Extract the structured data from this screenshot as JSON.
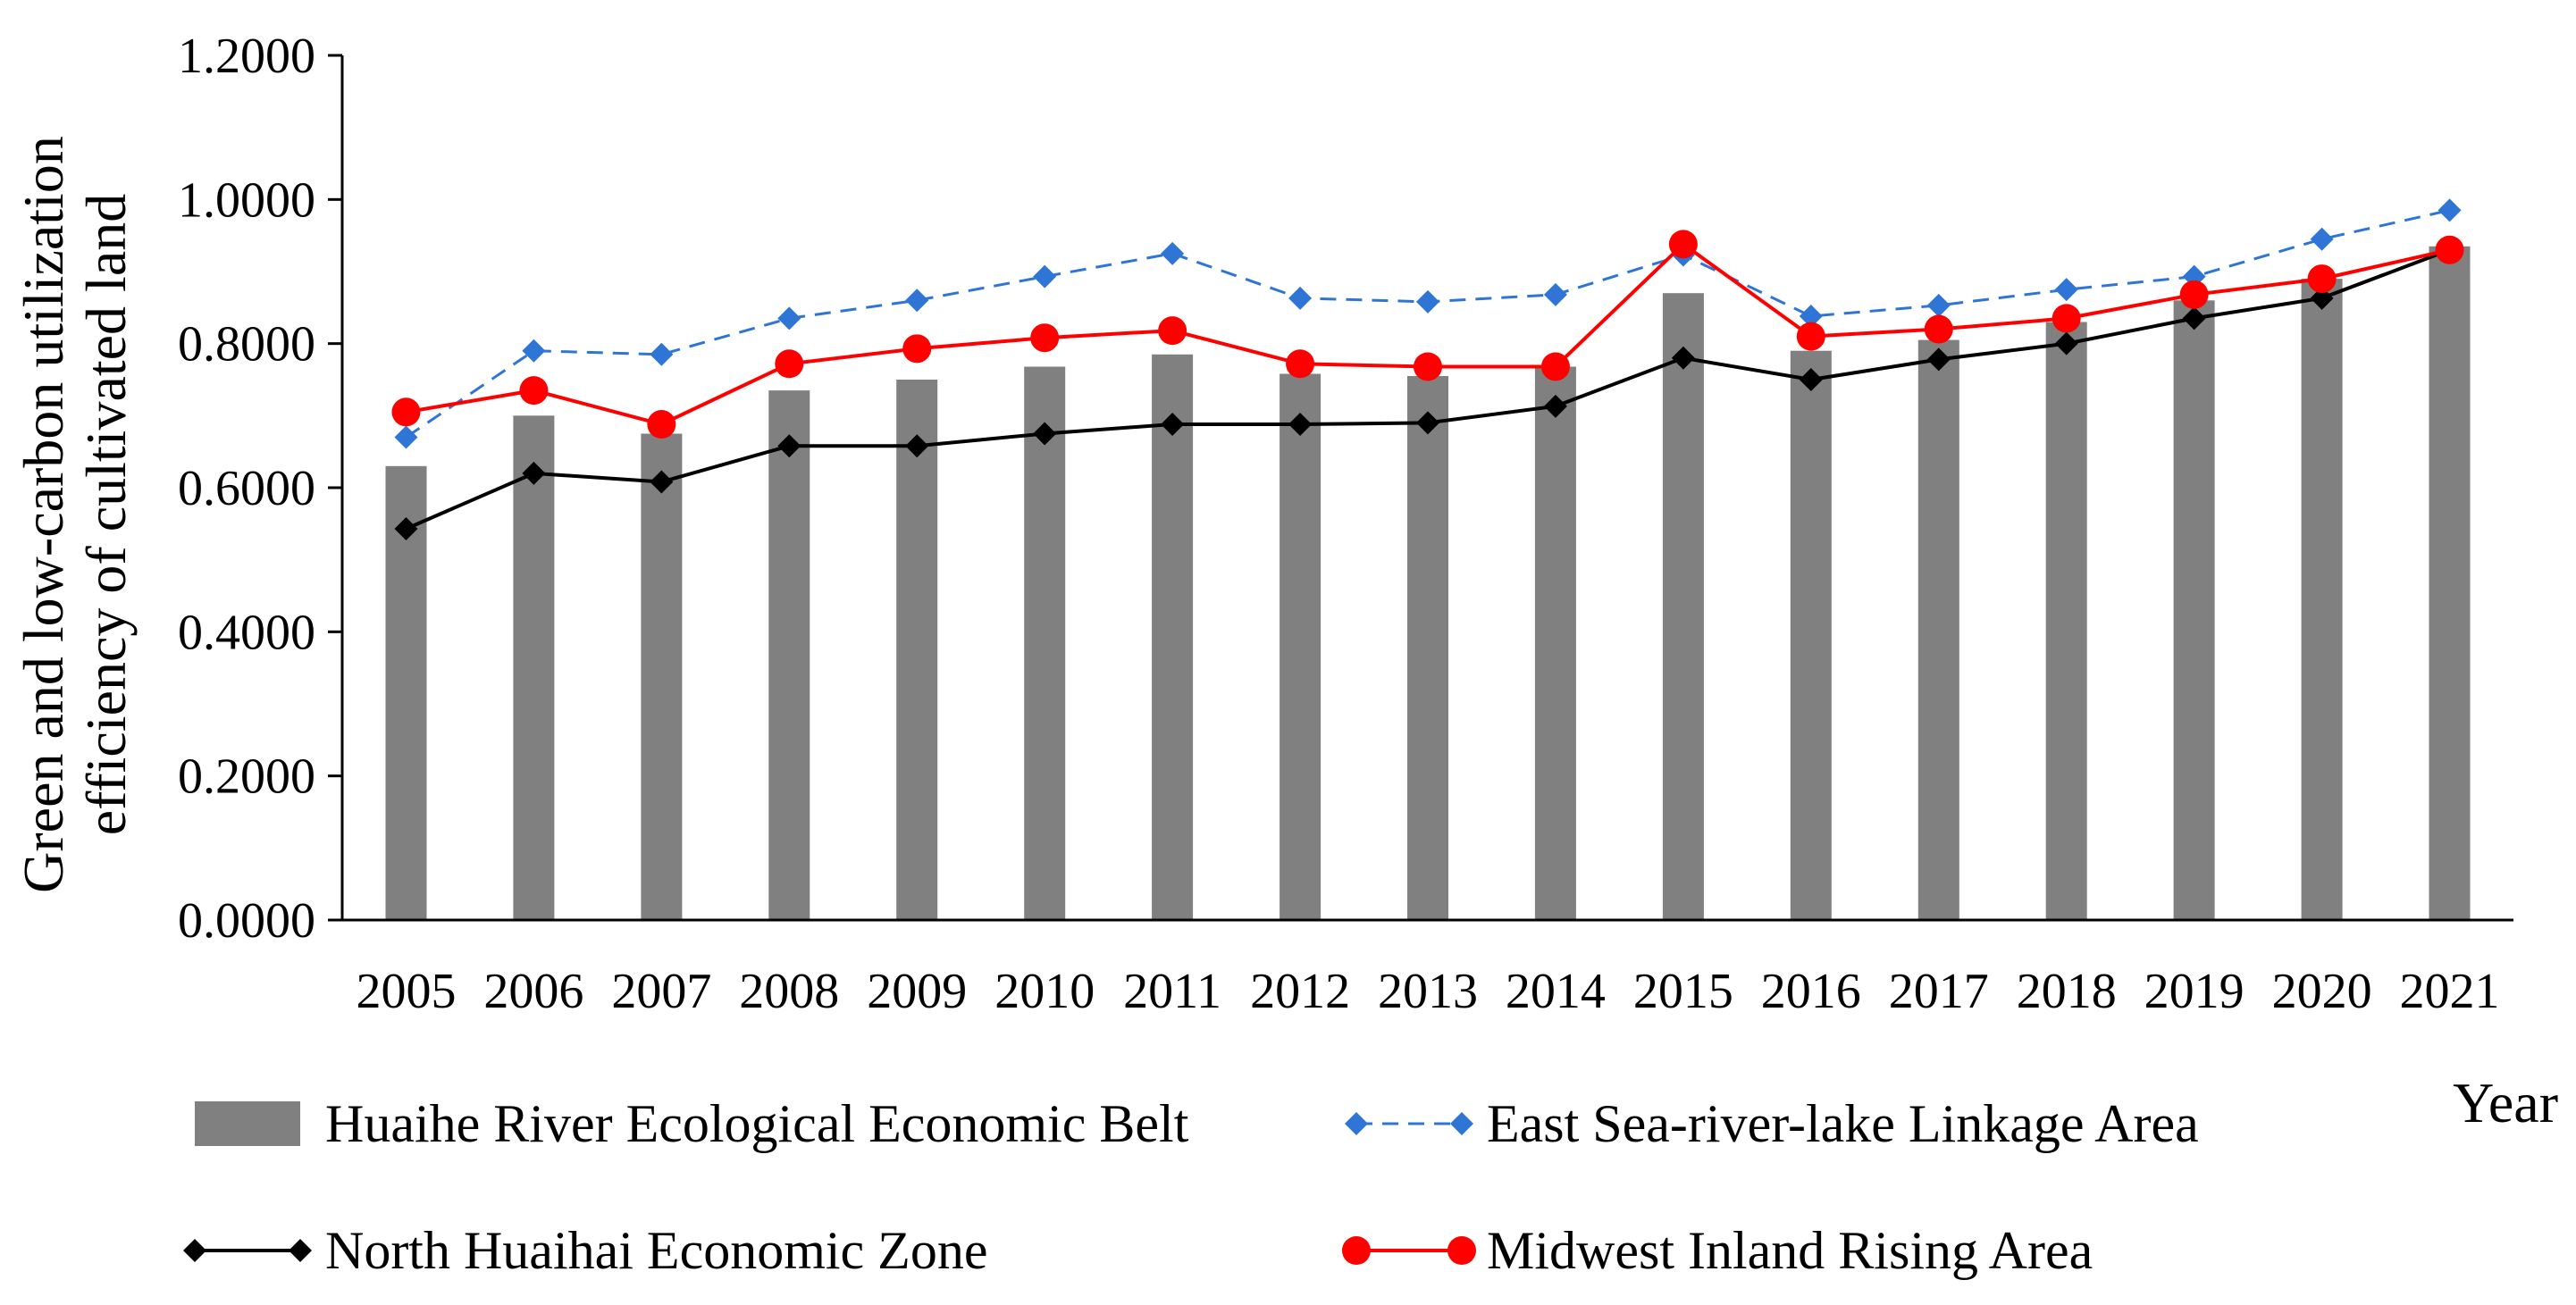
{
  "chart_data": {
    "type": "bar",
    "title": "",
    "xlabel": "Year",
    "ylabel_lines": [
      "Green and low-carbon utilization",
      "efficiency of cultivated land"
    ],
    "ylim": [
      0,
      1.2
    ],
    "yticks": [
      "0.0000",
      "0.2000",
      "0.4000",
      "0.6000",
      "0.8000",
      "1.0000",
      "1.2000"
    ],
    "ytick_values": [
      0,
      0.2,
      0.4,
      0.6,
      0.8,
      1.0,
      1.2
    ],
    "categories": [
      "2005",
      "2006",
      "2007",
      "2008",
      "2009",
      "2010",
      "2011",
      "2012",
      "2013",
      "2014",
      "2015",
      "2016",
      "2017",
      "2018",
      "2019",
      "2020",
      "2021"
    ],
    "series": [
      {
        "name": "Huaihe River Ecological Economic Belt",
        "type": "bar",
        "color": "#808080",
        "values": [
          0.63,
          0.7,
          0.675,
          0.735,
          0.75,
          0.768,
          0.785,
          0.758,
          0.755,
          0.768,
          0.87,
          0.79,
          0.805,
          0.83,
          0.86,
          0.89,
          0.935
        ]
      },
      {
        "name": "East Sea-river-lake Linkage Area",
        "type": "line",
        "style": "dashed",
        "marker": "diamond",
        "color": "#2E75D6",
        "values": [
          0.67,
          0.79,
          0.785,
          0.835,
          0.86,
          0.893,
          0.925,
          0.863,
          0.858,
          0.868,
          0.923,
          0.838,
          0.853,
          0.875,
          0.893,
          0.945,
          0.985
        ]
      },
      {
        "name": "North Huaihai Economic Zone",
        "type": "line",
        "style": "solid",
        "marker": "diamond",
        "color": "#000000",
        "values": [
          0.543,
          0.62,
          0.608,
          0.658,
          0.658,
          0.675,
          0.688,
          0.688,
          0.69,
          0.713,
          0.78,
          0.75,
          0.778,
          0.8,
          0.835,
          0.863,
          0.93
        ]
      },
      {
        "name": "Midwest Inland Rising Area",
        "type": "line",
        "style": "solid",
        "marker": "circle",
        "color": "#FF0000",
        "values": [
          0.705,
          0.735,
          0.688,
          0.772,
          0.793,
          0.808,
          0.818,
          0.772,
          0.768,
          0.768,
          0.938,
          0.81,
          0.82,
          0.835,
          0.868,
          0.89,
          0.93
        ]
      }
    ],
    "legend_position": "bottom"
  }
}
